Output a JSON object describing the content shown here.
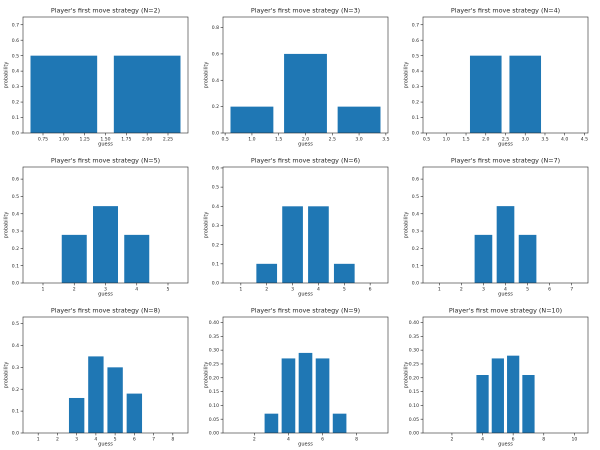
{
  "figure": {
    "background": "#ffffff",
    "bar_color": "#1f77b4",
    "text_color": "#262626",
    "spine_color": "#262626",
    "grid": "off",
    "legend": "none"
  },
  "chart_data": [
    {
      "id": "n2",
      "type": "bar",
      "title": "Player's first move strategy (N=2)",
      "xlabel": "guess",
      "ylabel": "probability",
      "categories": [
        1,
        2
      ],
      "values": [
        0.5,
        0.5
      ],
      "bar_width": 0.8,
      "xlim": [
        0.51,
        2.49
      ],
      "ylim": [
        0,
        0.75
      ],
      "xticks": [
        0.75,
        1.0,
        1.25,
        1.5,
        1.75,
        2.0,
        2.25
      ],
      "xtick_labels": [
        "0.75",
        "1.00",
        "1.25",
        "1.50",
        "1.75",
        "2.00",
        "2.25"
      ],
      "yticks": [
        0,
        0.1,
        0.2,
        0.3,
        0.4,
        0.5,
        0.6,
        0.7
      ],
      "ytick_labels": [
        "0.0",
        "0.1",
        "0.2",
        "0.3",
        "0.4",
        "0.5",
        "0.6",
        "0.7"
      ]
    },
    {
      "id": "n3",
      "type": "bar",
      "title": "Player's first move strategy (N=3)",
      "xlabel": "guess",
      "ylabel": "probability",
      "categories": [
        1,
        2,
        3
      ],
      "values": [
        0.2,
        0.6,
        0.2
      ],
      "bar_width": 0.8,
      "xlim": [
        0.46,
        3.54
      ],
      "ylim": [
        0,
        0.88
      ],
      "xticks": [
        0.5,
        1.0,
        1.5,
        2.0,
        2.5,
        3.0,
        3.5
      ],
      "xtick_labels": [
        "0.5",
        "1.0",
        "1.5",
        "2.0",
        "2.5",
        "3.0",
        "3.5"
      ],
      "yticks": [
        0,
        0.2,
        0.4,
        0.6,
        0.8
      ],
      "ytick_labels": [
        "0.0",
        "0.2",
        "0.4",
        "0.6",
        "0.8"
      ]
    },
    {
      "id": "n4",
      "type": "bar",
      "title": "Player's first move strategy (N=4)",
      "xlabel": "guess",
      "ylabel": "probability",
      "categories": [
        1,
        2,
        3,
        4
      ],
      "values": [
        0,
        0.5,
        0.5,
        0
      ],
      "bar_width": 0.8,
      "xlim": [
        0.41,
        4.59
      ],
      "ylim": [
        0,
        0.75
      ],
      "xticks": [
        0.5,
        1.0,
        1.5,
        2.0,
        2.5,
        3.0,
        3.5,
        4.0,
        4.5
      ],
      "xtick_labels": [
        "0.5",
        "1.0",
        "1.5",
        "2.0",
        "2.5",
        "3.0",
        "3.5",
        "4.0",
        "4.5"
      ],
      "yticks": [
        0,
        0.1,
        0.2,
        0.3,
        0.4,
        0.5,
        0.6,
        0.7
      ],
      "ytick_labels": [
        "0.0",
        "0.1",
        "0.2",
        "0.3",
        "0.4",
        "0.5",
        "0.6",
        "0.7"
      ]
    },
    {
      "id": "n5",
      "type": "bar",
      "title": "Player's first move strategy (N=5)",
      "xlabel": "guess",
      "ylabel": "probability",
      "categories": [
        1,
        2,
        3,
        4,
        5
      ],
      "values": [
        0,
        0.278,
        0.444,
        0.278,
        0
      ],
      "bar_width": 0.8,
      "xlim": [
        0.36,
        5.64
      ],
      "ylim": [
        0,
        0.67
      ],
      "xticks": [
        1,
        2,
        3,
        4,
        5
      ],
      "xtick_labels": [
        "1",
        "2",
        "3",
        "4",
        "5"
      ],
      "yticks": [
        0,
        0.1,
        0.2,
        0.3,
        0.4,
        0.5,
        0.6
      ],
      "ytick_labels": [
        "0.0",
        "0.1",
        "0.2",
        "0.3",
        "0.4",
        "0.5",
        "0.6"
      ]
    },
    {
      "id": "n6",
      "type": "bar",
      "title": "Player's first move strategy (N=6)",
      "xlabel": "guess",
      "ylabel": "probability",
      "categories": [
        1,
        2,
        3,
        4,
        5,
        6
      ],
      "values": [
        0,
        0.1,
        0.4,
        0.4,
        0.1,
        0
      ],
      "bar_width": 0.8,
      "xlim": [
        0.31,
        6.69
      ],
      "ylim": [
        0,
        0.605
      ],
      "xticks": [
        1,
        2,
        3,
        4,
        5,
        6
      ],
      "xtick_labels": [
        "1",
        "2",
        "3",
        "4",
        "5",
        "6"
      ],
      "yticks": [
        0,
        0.1,
        0.2,
        0.3,
        0.4,
        0.5,
        0.6
      ],
      "ytick_labels": [
        "0.0",
        "0.1",
        "0.2",
        "0.3",
        "0.4",
        "0.5",
        "0.6"
      ]
    },
    {
      "id": "n7",
      "type": "bar",
      "title": "Player's first move strategy (N=7)",
      "xlabel": "guess",
      "ylabel": "probability",
      "categories": [
        1,
        2,
        3,
        4,
        5,
        6,
        7
      ],
      "values": [
        0,
        0,
        0.278,
        0.444,
        0.278,
        0,
        0
      ],
      "bar_width": 0.8,
      "xlim": [
        0.26,
        7.74
      ],
      "ylim": [
        0,
        0.67
      ],
      "xticks": [
        1,
        2,
        3,
        4,
        5,
        6,
        7
      ],
      "xtick_labels": [
        "1",
        "2",
        "3",
        "4",
        "5",
        "6",
        "7"
      ],
      "yticks": [
        0,
        0.1,
        0.2,
        0.3,
        0.4,
        0.5,
        0.6
      ],
      "ytick_labels": [
        "0.0",
        "0.1",
        "0.2",
        "0.3",
        "0.4",
        "0.5",
        "0.6"
      ]
    },
    {
      "id": "n8",
      "type": "bar",
      "title": "Player's first move strategy (N=8)",
      "xlabel": "guess",
      "ylabel": "probability",
      "categories": [
        1,
        2,
        3,
        4,
        5,
        6,
        7,
        8
      ],
      "values": [
        0,
        0,
        0.16,
        0.35,
        0.3,
        0.18,
        0,
        0
      ],
      "bar_width": 0.8,
      "xlim": [
        0.21,
        8.79
      ],
      "ylim": [
        0,
        0.53
      ],
      "xticks": [
        1,
        2,
        3,
        4,
        5,
        6,
        7,
        8
      ],
      "xtick_labels": [
        "1",
        "2",
        "3",
        "4",
        "5",
        "6",
        "7",
        "8"
      ],
      "yticks": [
        0,
        0.1,
        0.2,
        0.3,
        0.4,
        0.5
      ],
      "ytick_labels": [
        "0.0",
        "0.1",
        "0.2",
        "0.3",
        "0.4",
        "0.5"
      ]
    },
    {
      "id": "n9",
      "type": "bar",
      "title": "Player's first move strategy (N=9)",
      "xlabel": "guess",
      "ylabel": "probability",
      "categories": [
        1,
        2,
        3,
        4,
        5,
        6,
        7,
        8,
        9
      ],
      "values": [
        0,
        0,
        0.07,
        0.27,
        0.29,
        0.27,
        0.07,
        0,
        0
      ],
      "bar_width": 0.8,
      "xlim": [
        0.16,
        9.84
      ],
      "ylim": [
        0,
        0.42
      ],
      "xticks": [
        2,
        4,
        6,
        8
      ],
      "xtick_labels": [
        "2",
        "4",
        "6",
        "8"
      ],
      "yticks": [
        0,
        0.05,
        0.1,
        0.15,
        0.2,
        0.25,
        0.3,
        0.35,
        0.4
      ],
      "ytick_labels": [
        "0.00",
        "0.05",
        "0.10",
        "0.15",
        "0.20",
        "0.25",
        "0.30",
        "0.35",
        "0.40"
      ]
    },
    {
      "id": "n10",
      "type": "bar",
      "title": "Player's first move strategy (N=10)",
      "xlabel": "guess",
      "ylabel": "probability",
      "categories": [
        1,
        2,
        3,
        4,
        5,
        6,
        7,
        8,
        9,
        10
      ],
      "values": [
        0,
        0,
        0,
        0.21,
        0.27,
        0.28,
        0.21,
        0,
        0,
        0
      ],
      "bar_width": 0.8,
      "xlim": [
        0.11,
        10.89
      ],
      "ylim": [
        0,
        0.42
      ],
      "xticks": [
        2,
        4,
        6,
        8,
        10
      ],
      "xtick_labels": [
        "2",
        "4",
        "6",
        "8",
        "10"
      ],
      "yticks": [
        0,
        0.05,
        0.1,
        0.15,
        0.2,
        0.25,
        0.3,
        0.35,
        0.4
      ],
      "ytick_labels": [
        "0.00",
        "0.05",
        "0.10",
        "0.15",
        "0.20",
        "0.25",
        "0.30",
        "0.35",
        "0.40"
      ]
    }
  ]
}
